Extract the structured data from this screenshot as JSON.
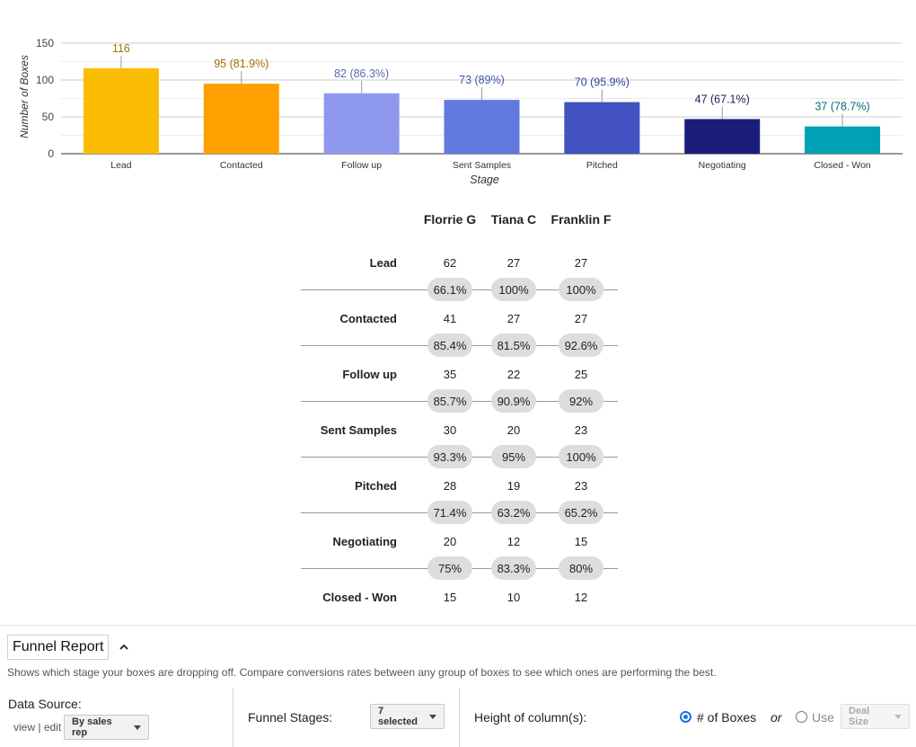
{
  "chart_data": {
    "type": "bar",
    "categories": [
      "Lead",
      "Contacted",
      "Follow up",
      "Sent Samples",
      "Pitched",
      "Negotiating",
      "Closed - Won"
    ],
    "values": [
      116,
      95,
      82,
      73,
      70,
      47,
      37
    ],
    "data_labels": [
      "116",
      "95 (81.9%)",
      "82 (86.3%)",
      "73 (89%)",
      "70 (95.9%)",
      "47 (67.1%)",
      "37 (78.7%)"
    ],
    "colors": [
      "#fbbc04",
      "#ff9f00",
      "#8e99ee",
      "#6178dc",
      "#4252c0",
      "#1a1e7a",
      "#00a1b2"
    ],
    "label_colors": [
      "#9c7a00",
      "#a86b00",
      "#5a67b5",
      "#3f55a8",
      "#33449c",
      "#1a1e5c",
      "#00707c"
    ],
    "xlabel": "Stage",
    "ylabel": "Number of Boxes",
    "ylim": [
      0,
      150
    ],
    "yticks": [
      0,
      50,
      100,
      150
    ],
    "grid": true
  },
  "funnel_table": {
    "reps": [
      "Florrie G",
      "Tiana C",
      "Franklin F"
    ],
    "stages": [
      {
        "label": "Lead",
        "counts": [
          "62",
          "27",
          "27"
        ]
      },
      {
        "label": "Contacted",
        "counts": [
          "41",
          "27",
          "27"
        ]
      },
      {
        "label": "Follow up",
        "counts": [
          "35",
          "22",
          "25"
        ]
      },
      {
        "label": "Sent Samples",
        "counts": [
          "30",
          "20",
          "23"
        ]
      },
      {
        "label": "Pitched",
        "counts": [
          "28",
          "19",
          "23"
        ]
      },
      {
        "label": "Negotiating",
        "counts": [
          "20",
          "12",
          "15"
        ]
      },
      {
        "label": "Closed - Won",
        "counts": [
          "15",
          "10",
          "12"
        ]
      }
    ],
    "conversions": [
      [
        "66.1%",
        "100%",
        "100%"
      ],
      [
        "85.4%",
        "81.5%",
        "92.6%"
      ],
      [
        "85.7%",
        "90.9%",
        "92%"
      ],
      [
        "93.3%",
        "95%",
        "100%"
      ],
      [
        "71.4%",
        "63.2%",
        "65.2%"
      ],
      [
        "75%",
        "83.3%",
        "80%"
      ]
    ]
  },
  "panel": {
    "title": "Funnel Report",
    "collapse_icon": "chevron-up-icon",
    "description": "Shows which stage your boxes are dropping off. Compare conversions rates between any group of boxes to see which ones are performing the best.",
    "data_source_label": "Data Source:",
    "view_link": "view",
    "link_separator": " | ",
    "edit_link": "edit",
    "data_source_value": "By sales rep",
    "funnel_stages_label": "Funnel Stages:",
    "funnel_stages_value": "7 selected",
    "height_label": "Height of column(s):",
    "option_boxes": "# of Boxes",
    "or_text": "or",
    "option_use": "Use",
    "use_select_value": "Deal Size",
    "selected_option": "# of Boxes"
  }
}
